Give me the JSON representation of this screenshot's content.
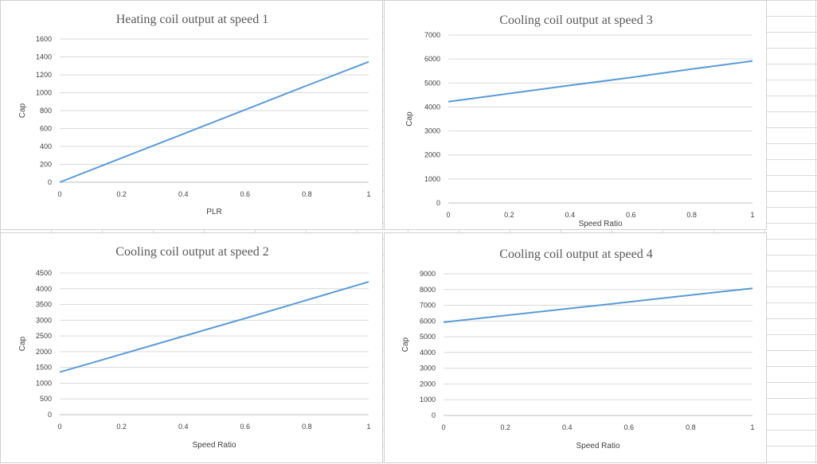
{
  "chart_data": [
    {
      "type": "line",
      "title": "Heating coil output at speed 1",
      "xlabel": "PLR",
      "ylabel": "Cap",
      "xlim": [
        0,
        1
      ],
      "ylim": [
        0,
        1600
      ],
      "x_ticks": [
        "0",
        "0.2",
        "0.4",
        "0.6",
        "0.8",
        "1"
      ],
      "y_ticks": [
        "0",
        "200",
        "400",
        "600",
        "800",
        "1000",
        "1200",
        "1400",
        "1600"
      ],
      "grid": true,
      "color": "#5b9bd5",
      "x": [
        0,
        0.2,
        0.4,
        0.6,
        0.8,
        1.0
      ],
      "y": [
        0,
        270,
        540,
        810,
        1080,
        1345
      ]
    },
    {
      "type": "line",
      "title": "Cooling coil output at speed 3",
      "xlabel": "Speed Ratio",
      "ylabel": "Cap",
      "xlim": [
        0,
        1
      ],
      "ylim": [
        0,
        7000
      ],
      "x_ticks": [
        "0",
        "0.2",
        "0.4",
        "0.6",
        "0.8",
        "1"
      ],
      "y_ticks": [
        "0",
        "1000",
        "2000",
        "3000",
        "4000",
        "5000",
        "6000",
        "7000"
      ],
      "grid": true,
      "color": "#5b9bd5",
      "x": [
        0,
        0.2,
        0.4,
        0.6,
        0.8,
        1.0
      ],
      "y": [
        4220,
        4560,
        4900,
        5230,
        5580,
        5920
      ]
    },
    {
      "type": "line",
      "title": "Cooling coil output at speed 2",
      "xlabel": "Speed Ratio",
      "ylabel": "Cap",
      "xlim": [
        0,
        1
      ],
      "ylim": [
        0,
        4500
      ],
      "x_ticks": [
        "0",
        "0.2",
        "0.4",
        "0.6",
        "0.8",
        "1"
      ],
      "y_ticks": [
        "0",
        "500",
        "1000",
        "1500",
        "2000",
        "2500",
        "3000",
        "3500",
        "4000",
        "4500"
      ],
      "grid": true,
      "color": "#5b9bd5",
      "x": [
        0,
        0.2,
        0.4,
        0.6,
        0.8,
        1.0
      ],
      "y": [
        1350,
        1920,
        2490,
        3060,
        3640,
        4220
      ]
    },
    {
      "type": "line",
      "title": "Cooling coil output at speed 4",
      "xlabel": "Speed Ratio",
      "ylabel": "Cap",
      "xlim": [
        0,
        1
      ],
      "ylim": [
        0,
        9000
      ],
      "x_ticks": [
        "0",
        "0.2",
        "0.4",
        "0.6",
        "0.8",
        "1"
      ],
      "y_ticks": [
        "0",
        "1000",
        "2000",
        "3000",
        "4000",
        "5000",
        "6000",
        "7000",
        "8000",
        "9000"
      ],
      "grid": true,
      "color": "#5b9bd5",
      "x": [
        0,
        0.2,
        0.4,
        0.6,
        0.8,
        1.0
      ],
      "y": [
        5920,
        6350,
        6780,
        7210,
        7650,
        8080
      ]
    }
  ]
}
